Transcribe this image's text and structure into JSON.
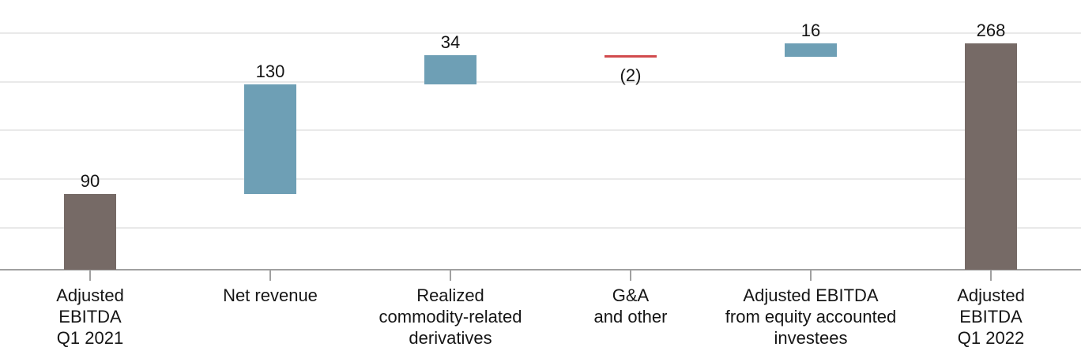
{
  "colors": {
    "background": "#ffffff",
    "total_bar": "#766A66",
    "increase_bar": "#6E9FB5",
    "decrease_bar": "#D14B4D",
    "gridline": "#E9E9E9",
    "axis": "#A0A0A0",
    "text": "#151515"
  },
  "chart_data": {
    "type": "bar",
    "subtype": "waterfall",
    "title": "",
    "xlabel": "",
    "ylabel": "",
    "ylim": [
      0,
      320
    ],
    "gridline_values": [
      50,
      107.5,
      165,
      222.5,
      280
    ],
    "grid_on": true,
    "legend_position": "none",
    "categories": [
      {
        "label_lines": [
          "Adjusted",
          "EBITDA",
          "Q1 2021"
        ],
        "value": 90,
        "value_label": "90",
        "start": 0,
        "end": 90,
        "role": "total"
      },
      {
        "label_lines": [
          "Net revenue"
        ],
        "value": 130,
        "value_label": "130",
        "start": 90,
        "end": 220,
        "role": "increase"
      },
      {
        "label_lines": [
          "Realized",
          "commodity-related",
          "derivatives"
        ],
        "value": 34,
        "value_label": "34",
        "start": 220,
        "end": 254,
        "role": "increase"
      },
      {
        "label_lines": [
          "G&A",
          "and other"
        ],
        "value": -2,
        "value_label": "(2)",
        "start": 254,
        "end": 252,
        "role": "decrease"
      },
      {
        "label_lines": [
          "Adjusted EBITDA",
          "from equity accounted",
          "investees"
        ],
        "value": 16,
        "value_label": "16",
        "start": 252,
        "end": 268,
        "role": "increase"
      },
      {
        "label_lines": [
          "Adjusted",
          "EBITDA",
          "Q1 2022"
        ],
        "value": 268,
        "value_label": "268",
        "start": 0,
        "end": 268,
        "role": "total"
      }
    ]
  }
}
